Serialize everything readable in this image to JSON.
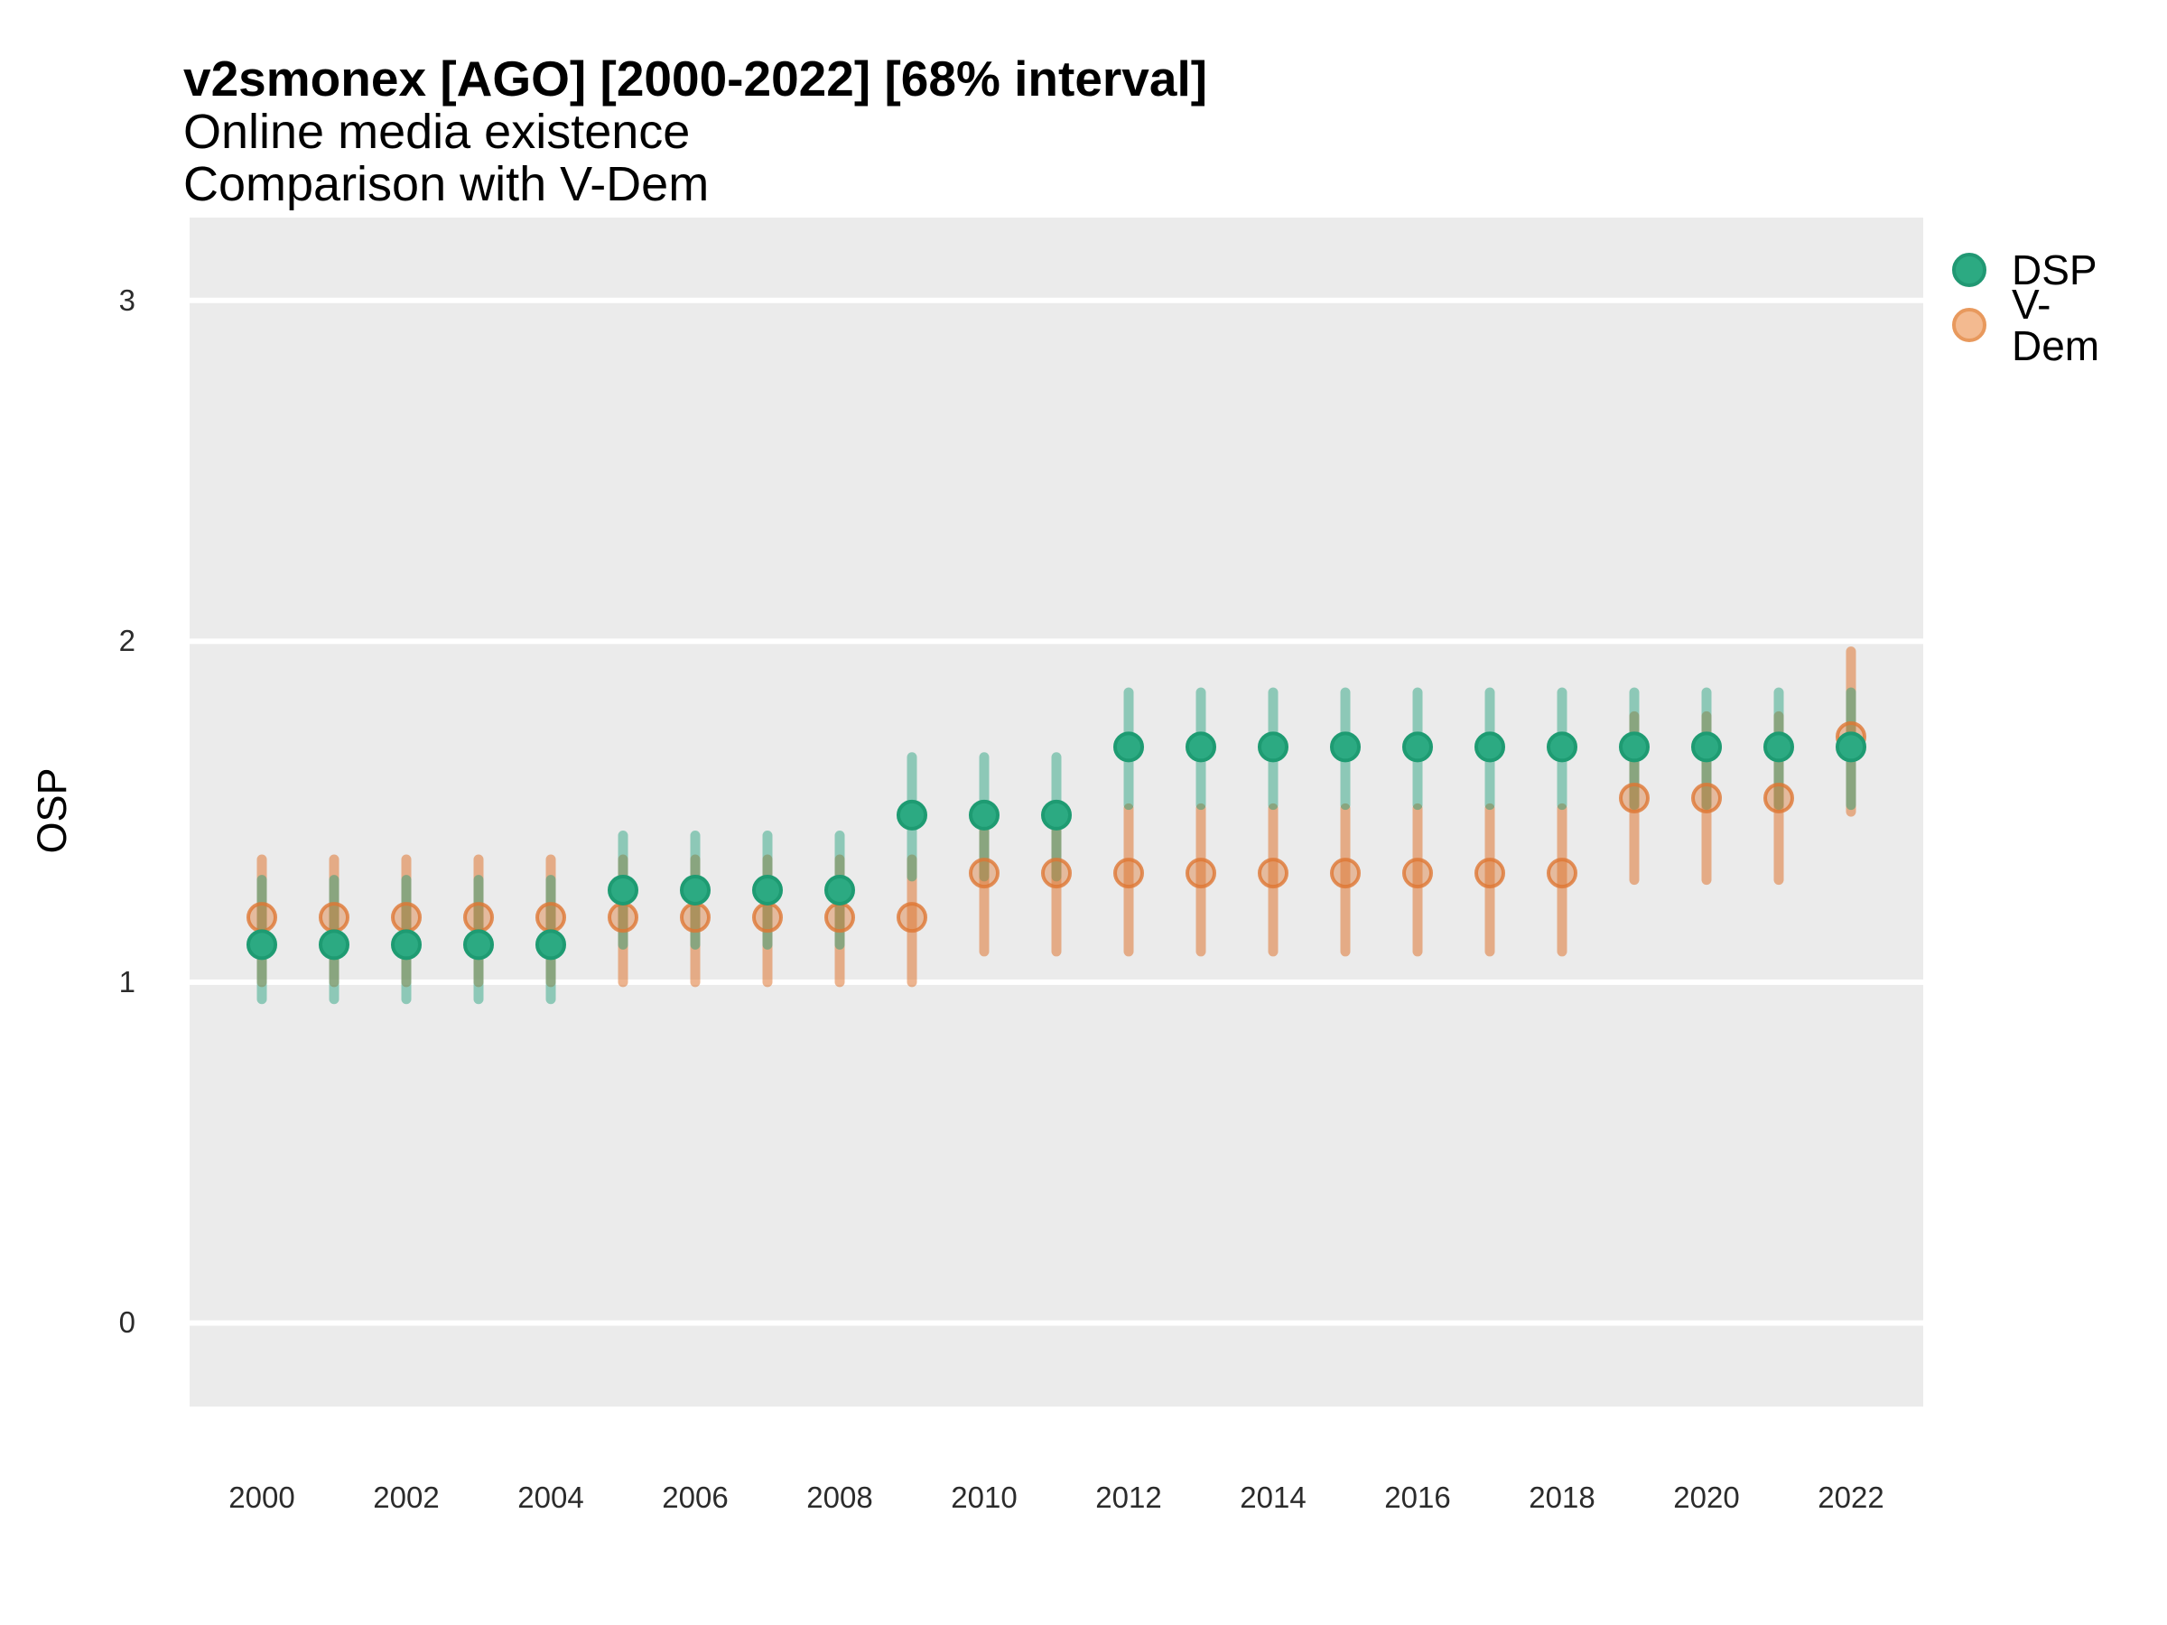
{
  "header": {
    "title": "v2smonex [AGO] [2000-2022] [68% interval]",
    "subtitle1": "Online media existence",
    "subtitle2": "Comparison with V-Dem"
  },
  "legend": {
    "items": [
      {
        "label": "DSP",
        "swatch_fill": "#2CAA82",
        "swatch_border": "#219873"
      },
      {
        "label": "V-Dem",
        "swatch_fill": "#F3BA90",
        "swatch_border": "#E8995D"
      }
    ]
  },
  "chart_data": {
    "type": "scatter",
    "title": "v2smonex [AGO] [2000-2022] [68% interval]",
    "subtitle": [
      "Online media existence",
      "Comparison with V-Dem"
    ],
    "xlabel": "",
    "ylabel": "OSP",
    "x_domain": [
      1999,
      2023
    ],
    "y_domain": [
      -0.245,
      3.243
    ],
    "x_ticks": [
      2000,
      2002,
      2004,
      2006,
      2008,
      2010,
      2012,
      2014,
      2016,
      2018,
      2020,
      2022
    ],
    "y_ticks": [
      0,
      1,
      2,
      3
    ],
    "grid": "horizontal-major-only",
    "legend_position": "top-right",
    "panel_bg": "#EBEBEB",
    "grid_color": "#FFFFFF",
    "interval": "68%",
    "x": [
      2000,
      2001,
      2002,
      2003,
      2004,
      2005,
      2006,
      2007,
      2008,
      2009,
      2010,
      2011,
      2012,
      2013,
      2014,
      2015,
      2016,
      2017,
      2018,
      2019,
      2020,
      2021,
      2022
    ],
    "series": [
      {
        "name": "DSP",
        "bar_color": "rgba(27,158,119,0.45)",
        "point_fill": "#2CAA82",
        "point_stroke": "#1E9B72",
        "values": [
          1.11,
          1.11,
          1.11,
          1.11,
          1.11,
          1.27,
          1.27,
          1.27,
          1.27,
          1.49,
          1.49,
          1.49,
          1.69,
          1.69,
          1.69,
          1.69,
          1.69,
          1.69,
          1.69,
          1.69,
          1.69,
          1.69,
          1.69
        ],
        "lower": [
          0.95,
          0.95,
          0.95,
          0.95,
          0.95,
          1.11,
          1.11,
          1.11,
          1.11,
          1.31,
          1.31,
          1.31,
          1.52,
          1.52,
          1.52,
          1.52,
          1.52,
          1.52,
          1.52,
          1.52,
          1.52,
          1.52,
          1.52
        ],
        "upper": [
          1.3,
          1.3,
          1.3,
          1.3,
          1.3,
          1.43,
          1.43,
          1.43,
          1.43,
          1.66,
          1.66,
          1.66,
          1.85,
          1.85,
          1.85,
          1.85,
          1.85,
          1.85,
          1.85,
          1.85,
          1.85,
          1.85,
          1.85
        ]
      },
      {
        "name": "V-Dem",
        "bar_color": "rgba(222,119,51,0.55)",
        "point_fill": "rgba(222,119,51,0.42)",
        "point_stroke": "rgba(222,119,51,0.8)",
        "values": [
          1.19,
          1.19,
          1.19,
          1.19,
          1.19,
          1.19,
          1.19,
          1.19,
          1.19,
          1.19,
          1.32,
          1.32,
          1.32,
          1.32,
          1.32,
          1.32,
          1.32,
          1.32,
          1.32,
          1.54,
          1.54,
          1.54,
          1.72
        ],
        "lower": [
          1.0,
          1.0,
          1.0,
          1.0,
          1.0,
          1.0,
          1.0,
          1.0,
          1.0,
          1.0,
          1.09,
          1.09,
          1.09,
          1.09,
          1.09,
          1.09,
          1.09,
          1.09,
          1.09,
          1.3,
          1.3,
          1.3,
          1.5
        ],
        "upper": [
          1.36,
          1.36,
          1.36,
          1.36,
          1.36,
          1.36,
          1.36,
          1.36,
          1.36,
          1.36,
          1.51,
          1.51,
          1.51,
          1.51,
          1.51,
          1.51,
          1.51,
          1.51,
          1.51,
          1.78,
          1.78,
          1.78,
          1.97
        ]
      }
    ]
  }
}
